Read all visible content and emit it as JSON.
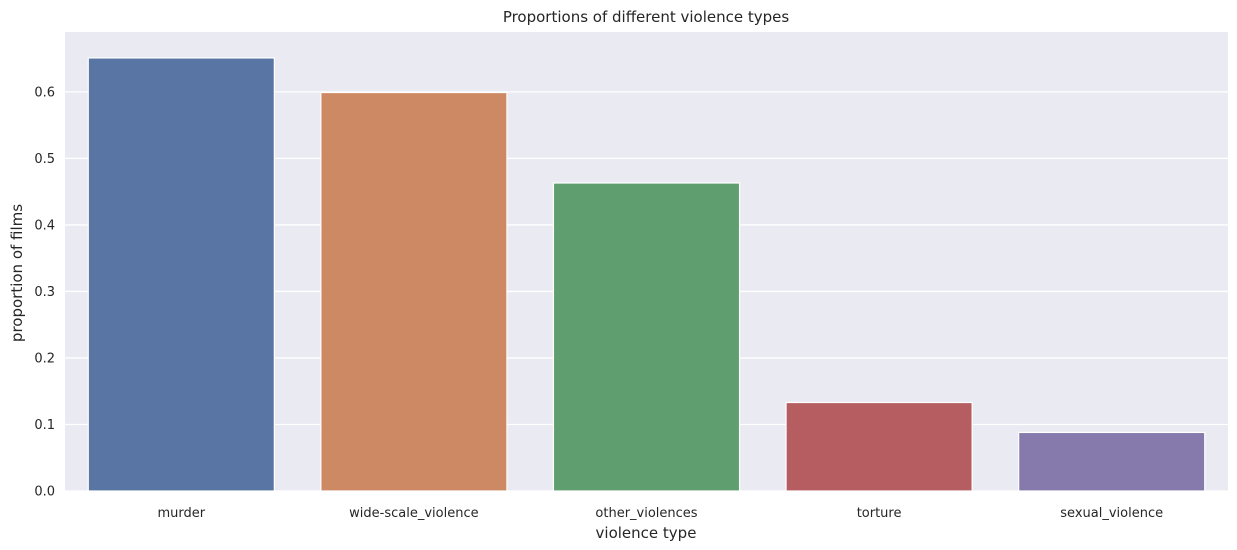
{
  "chart_data": {
    "type": "bar",
    "title": "Proportions of different violence types",
    "xlabel": "violence type",
    "ylabel": "proportion of films",
    "categories": [
      "murder",
      "wide-scale_violence",
      "other_violences",
      "torture",
      "sexual_violence"
    ],
    "values": [
      0.651,
      0.599,
      0.463,
      0.133,
      0.088
    ],
    "colors": [
      "#5875a4",
      "#cc8963",
      "#5f9e6e",
      "#b55d60",
      "#857aab"
    ],
    "ylim": [
      0,
      0.69
    ],
    "yticks": [
      "0.0",
      "0.1",
      "0.2",
      "0.3",
      "0.4",
      "0.5",
      "0.6"
    ],
    "grid": true,
    "background": "#eaeaf2",
    "grid_color": "#ffffff"
  }
}
